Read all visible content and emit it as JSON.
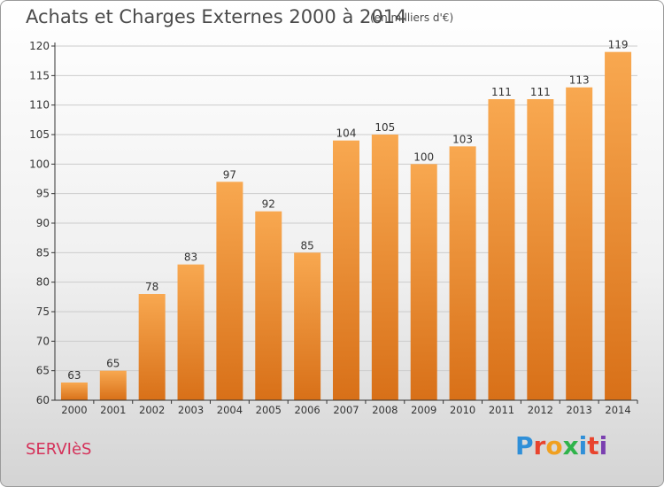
{
  "header": {
    "title": "Achats et Charges Externes 2000 à 2014",
    "subtitle": "(en milliers d'€)"
  },
  "footer": {
    "town": "SERVIèS",
    "logo_text": "Proxiti",
    "logo_colors": [
      "#2f8fd8",
      "#e8442e",
      "#f0a020",
      "#2fb34a",
      "#2f8fd8",
      "#e8442e",
      "#7a3fb0"
    ]
  },
  "colors": {
    "bar_top": "#f8a850",
    "bar_bottom": "#d87018",
    "grid": "#cccccc",
    "axis": "#333333",
    "text": "#333333"
  },
  "chart_data": {
    "type": "bar",
    "categories": [
      "2000",
      "2001",
      "2002",
      "2003",
      "2004",
      "2005",
      "2006",
      "2007",
      "2008",
      "2009",
      "2010",
      "2011",
      "2012",
      "2013",
      "2014"
    ],
    "values": [
      63,
      65,
      78,
      83,
      97,
      92,
      85,
      104,
      105,
      100,
      103,
      111,
      111,
      113,
      119
    ],
    "ylim": [
      60,
      120
    ],
    "yticks": [
      60,
      65,
      70,
      75,
      80,
      85,
      90,
      95,
      100,
      105,
      110,
      115,
      120
    ],
    "grid": true,
    "data_labels": true
  }
}
